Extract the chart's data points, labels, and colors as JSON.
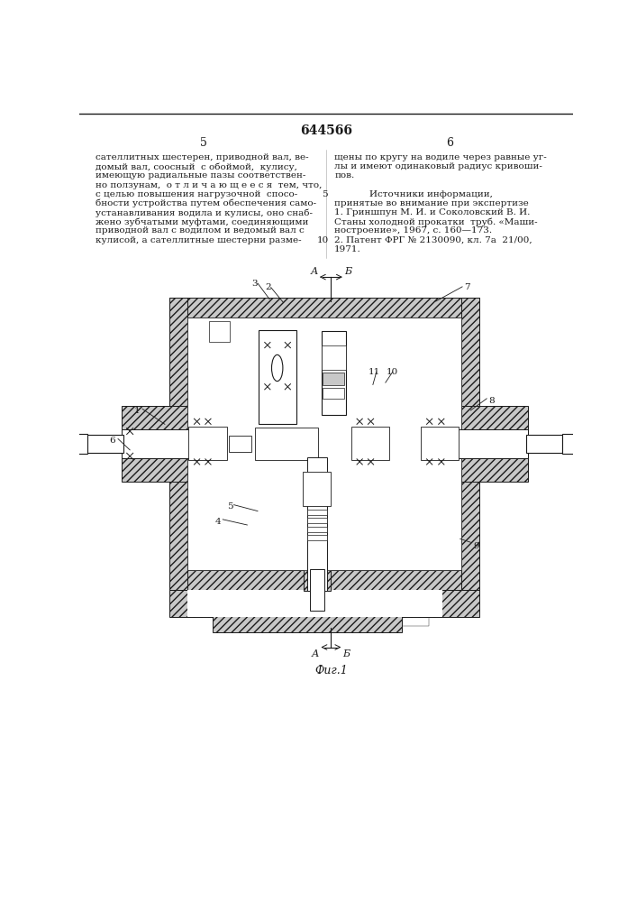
{
  "patent_number": "644566",
  "page_left": "5",
  "page_right": "6",
  "text_left_col": [
    "сателлитных шестерен, приводной вал, ве-",
    "домый вал, соосный  с обоймой,  кулису,",
    "имеющую радиальные пазы соответствен-",
    "но ползунам,  о т л и ч а ю щ е е с я  тем, что,",
    "с целью повышения нагрузочной  спосо-",
    "бности устройства путем обеспечения само-",
    "устанавливания водила и кулисы, оно снаб-",
    "жено зубчатыми муфтами, соединяющими",
    "приводной вал с водилом и ведомый вал с",
    "кулисой, а сателлитные шестерни разме-"
  ],
  "text_right_col": [
    "щены по кругу на водиле через равные уг-",
    "лы и имеют одинаковый радиус кривоши-",
    "пов.",
    "",
    "Источники информации,",
    "принятые во внимание при экспертизе",
    "1. Гриншпун М. И. и Соколовский В. И.",
    "Станы холодной прокатки  труб. «Маши-",
    "ностроение», 1967, с. 160—173.",
    "2. Патент ФРГ № 2130090, кл. 7а  21/00,",
    "1971."
  ],
  "fig_label": "Фиг.1",
  "line_color": "#1a1a1a",
  "hatch_fc": "#c8c8c8",
  "white": "#ffffff"
}
